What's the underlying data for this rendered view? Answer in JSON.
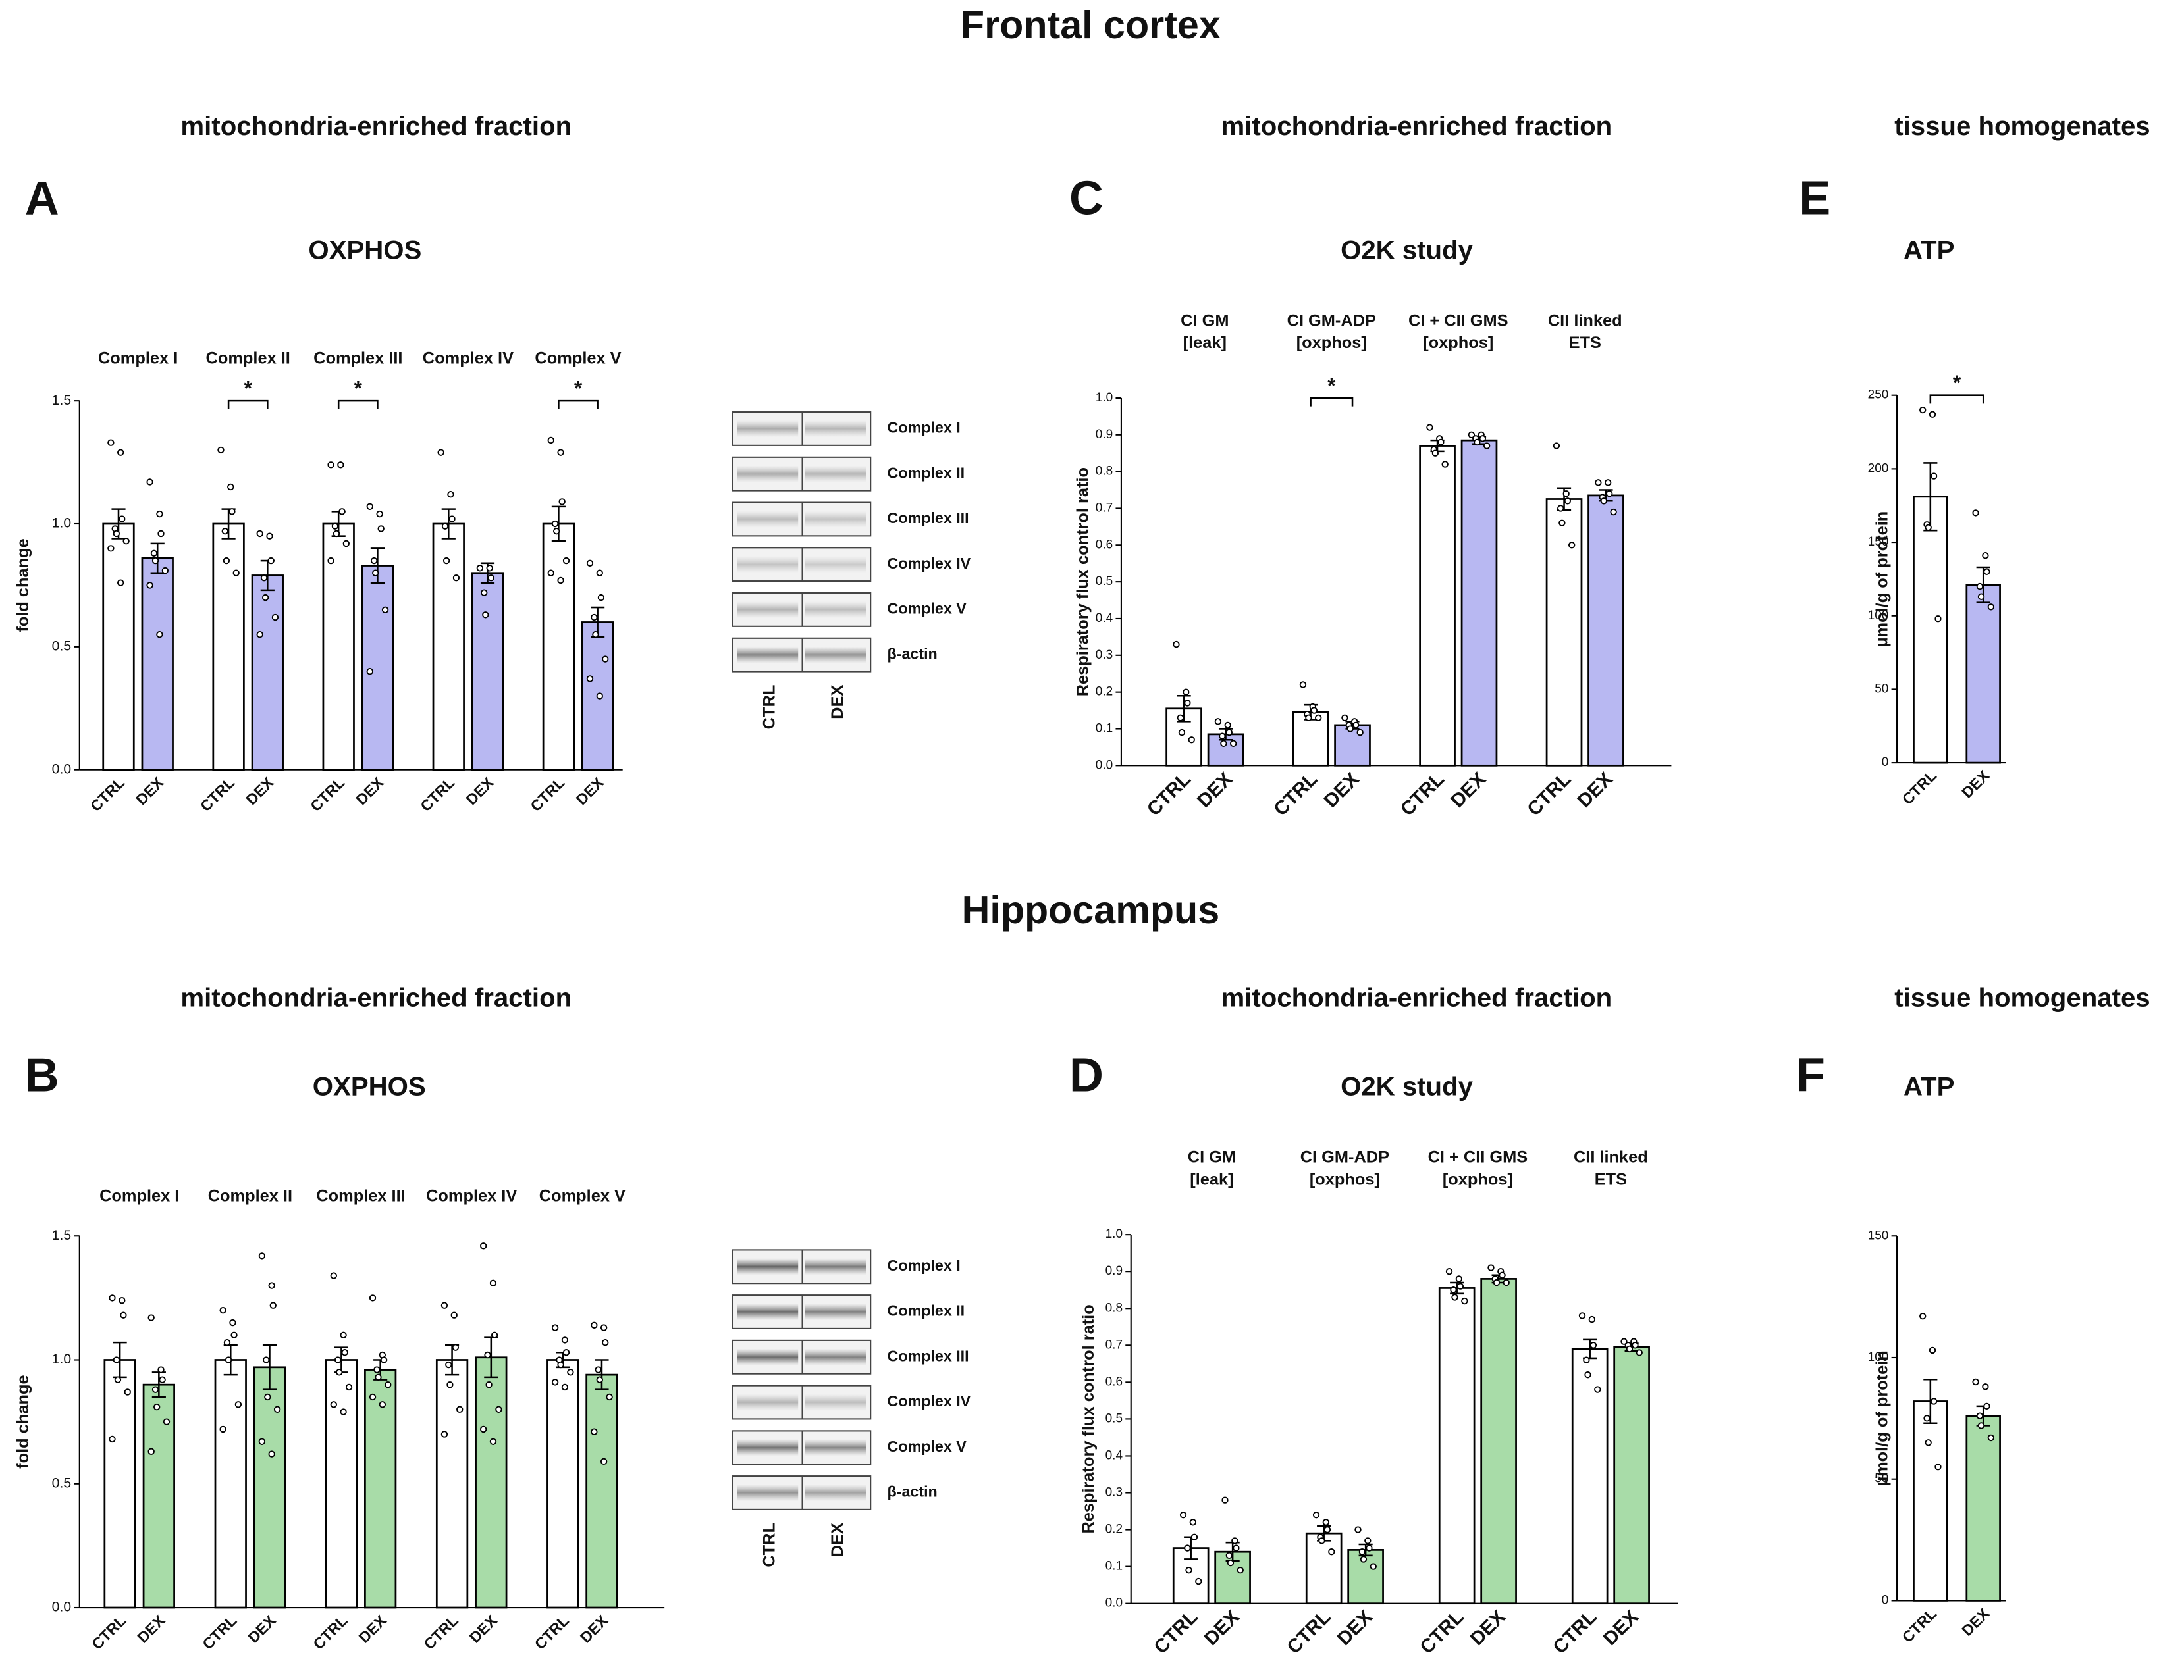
{
  "sections": [
    {
      "title": "Frontal cortex",
      "subtitles": [
        "mitochondria-enriched fraction",
        "mitochondria-enriched fraction",
        "tissue homogenates"
      ]
    },
    {
      "title": "Hippocampus",
      "subtitles": [
        "mitochondria-enriched fraction",
        "mitochondria-enriched fraction",
        "tissue homogenates"
      ]
    }
  ],
  "chart_data": [
    {
      "panel": "A",
      "type": "bar",
      "title": "OXPHOS",
      "ylabel": "fold change",
      "categories": [
        "Complex I",
        "Complex II",
        "Complex III",
        "Complex IV",
        "Complex V"
      ],
      "ylim": [
        0,
        1.5
      ],
      "yticks": [
        {
          "value": 0,
          "label": "0.0"
        },
        {
          "value": 0.5,
          "label": "0.5"
        },
        {
          "value": 1,
          "label": "1.0"
        },
        {
          "value": 1.5,
          "label": "1.5"
        }
      ],
      "significance": [
        null,
        "*",
        "*",
        null,
        "*"
      ],
      "series": [
        {
          "name": "CTRL",
          "color": "#ffffff",
          "values": [
            1.0,
            1.0,
            1.0,
            1.0,
            1.0
          ],
          "errors": [
            0.06,
            0.06,
            0.05,
            0.06,
            0.07
          ],
          "points": [
            [
              1.33,
              1.29,
              1.02,
              0.98,
              0.96,
              0.93,
              0.9,
              0.76
            ],
            [
              1.3,
              1.15,
              1.05,
              0.97,
              0.85,
              0.8
            ],
            [
              1.24,
              1.24,
              1.05,
              0.99,
              0.96,
              0.92,
              0.85
            ],
            [
              1.29,
              1.12,
              1.02,
              0.99,
              0.85,
              0.78
            ],
            [
              1.34,
              1.29,
              1.09,
              1.0,
              0.97,
              0.85,
              0.8,
              0.77
            ]
          ]
        },
        {
          "name": "DEX",
          "color": "#b8b8f2",
          "values": [
            0.86,
            0.79,
            0.83,
            0.8,
            0.6
          ],
          "errors": [
            0.06,
            0.06,
            0.07,
            0.04,
            0.06
          ],
          "points": [
            [
              1.17,
              1.04,
              0.96,
              0.88,
              0.85,
              0.81,
              0.75,
              0.55
            ],
            [
              0.96,
              0.95,
              0.85,
              0.78,
              0.7,
              0.62,
              0.55
            ],
            [
              1.07,
              1.04,
              0.98,
              0.85,
              0.8,
              0.65,
              0.4
            ],
            [
              0.82,
              0.82,
              0.78,
              0.72,
              0.63
            ],
            [
              0.84,
              0.8,
              0.7,
              0.62,
              0.55,
              0.45,
              0.37,
              0.3
            ]
          ]
        }
      ]
    },
    {
      "panel": "B",
      "type": "bar",
      "title": "OXPHOS",
      "ylabel": "fold change",
      "categories": [
        "Complex I",
        "Complex II",
        "Complex III",
        "Complex IV",
        "Complex V"
      ],
      "ylim": [
        0,
        1.5
      ],
      "yticks": [
        {
          "value": 0,
          "label": "0.0"
        },
        {
          "value": 0.5,
          "label": "0.5"
        },
        {
          "value": 1,
          "label": "1.0"
        },
        {
          "value": 1.5,
          "label": "1.5"
        }
      ],
      "series": [
        {
          "name": "CTRL",
          "color": "#ffffff",
          "values": [
            1.0,
            1.0,
            1.0,
            1.0,
            1.0
          ],
          "errors": [
            0.07,
            0.06,
            0.05,
            0.06,
            0.03
          ],
          "points": [
            [
              1.25,
              1.24,
              1.18,
              1.0,
              0.92,
              0.87,
              0.68
            ],
            [
              1.2,
              1.15,
              1.1,
              1.07,
              1.0,
              0.82,
              0.72
            ],
            [
              1.34,
              1.1,
              1.03,
              1.0,
              0.95,
              0.89,
              0.82,
              0.79
            ],
            [
              1.22,
              1.18,
              1.05,
              0.98,
              0.9,
              0.8,
              0.7
            ],
            [
              1.13,
              1.08,
              1.03,
              1.0,
              0.98,
              0.95,
              0.91,
              0.89
            ]
          ]
        },
        {
          "name": "DEX",
          "color": "#a8dca8",
          "values": [
            0.9,
            0.97,
            0.96,
            1.01,
            0.94
          ],
          "errors": [
            0.05,
            0.09,
            0.04,
            0.08,
            0.06
          ],
          "points": [
            [
              1.17,
              0.96,
              0.92,
              0.88,
              0.81,
              0.75,
              0.63
            ],
            [
              1.42,
              1.3,
              1.22,
              1.0,
              0.85,
              0.8,
              0.67,
              0.62
            ],
            [
              1.25,
              1.02,
              1.0,
              0.96,
              0.93,
              0.9,
              0.85,
              0.82
            ],
            [
              1.46,
              1.31,
              1.1,
              1.02,
              0.9,
              0.8,
              0.72,
              0.67
            ],
            [
              1.14,
              1.13,
              1.07,
              0.96,
              0.92,
              0.85,
              0.71,
              0.59
            ]
          ]
        }
      ]
    },
    {
      "panel": "C",
      "type": "bar",
      "title": "O2K study",
      "ylabel": "Respiratory flux control ratio",
      "categories": [
        [
          "CI GM",
          "[leak]"
        ],
        [
          "CI GM-ADP",
          "[oxphos]"
        ],
        [
          "CI + CII GMS",
          "[oxphos]"
        ],
        [
          "CII linked",
          "ETS"
        ]
      ],
      "ylim": [
        0,
        1
      ],
      "yticks": [
        {
          "value": 0,
          "label": "0.0"
        },
        {
          "value": 0.1,
          "label": "0.1"
        },
        {
          "value": 0.2,
          "label": "0.2"
        },
        {
          "value": 0.3,
          "label": "0.3"
        },
        {
          "value": 0.4,
          "label": "0.4"
        },
        {
          "value": 0.5,
          "label": "0.5"
        },
        {
          "value": 0.6,
          "label": "0.6"
        },
        {
          "value": 0.7,
          "label": "0.7"
        },
        {
          "value": 0.8,
          "label": "0.8"
        },
        {
          "value": 0.9,
          "label": "0.9"
        },
        {
          "value": 1,
          "label": "1.0"
        }
      ],
      "significance": [
        null,
        "*",
        null,
        null
      ],
      "series": [
        {
          "name": "CTRL",
          "color": "#ffffff",
          "values": [
            0.155,
            0.145,
            0.87,
            0.725
          ],
          "errors": [
            0.035,
            0.02,
            0.015,
            0.03
          ],
          "points": [
            [
              0.33,
              0.2,
              0.17,
              0.13,
              0.09,
              0.07
            ],
            [
              0.22,
              0.16,
              0.15,
              0.14,
              0.13,
              0.13
            ],
            [
              0.92,
              0.89,
              0.88,
              0.86,
              0.85,
              0.82
            ],
            [
              0.87,
              0.74,
              0.72,
              0.7,
              0.66,
              0.6
            ]
          ]
        },
        {
          "name": "DEX",
          "color": "#b8b8f2",
          "values": [
            0.085,
            0.11,
            0.885,
            0.735
          ],
          "errors": [
            0.015,
            0.01,
            0.01,
            0.015
          ],
          "points": [
            [
              0.12,
              0.11,
              0.09,
              0.08,
              0.06,
              0.06
            ],
            [
              0.13,
              0.12,
              0.11,
              0.11,
              0.1,
              0.09
            ],
            [
              0.9,
              0.9,
              0.89,
              0.89,
              0.88,
              0.87
            ],
            [
              0.77,
              0.77,
              0.74,
              0.73,
              0.72,
              0.69
            ]
          ]
        }
      ]
    },
    {
      "panel": "D",
      "type": "bar",
      "title": "O2K study",
      "ylabel": "Respiratory flux control ratio",
      "categories": [
        [
          "CI GM",
          "[leak]"
        ],
        [
          "CI GM-ADP",
          "[oxphos]"
        ],
        [
          "CI + CII GMS",
          "[oxphos]"
        ],
        [
          "CII linked",
          "ETS"
        ]
      ],
      "ylim": [
        0,
        1
      ],
      "yticks": [
        {
          "value": 0,
          "label": "0.0"
        },
        {
          "value": 0.1,
          "label": "0.1"
        },
        {
          "value": 0.2,
          "label": "0.2"
        },
        {
          "value": 0.3,
          "label": "0.3"
        },
        {
          "value": 0.4,
          "label": "0.4"
        },
        {
          "value": 0.5,
          "label": "0.5"
        },
        {
          "value": 0.6,
          "label": "0.6"
        },
        {
          "value": 0.7,
          "label": "0.7"
        },
        {
          "value": 0.8,
          "label": "0.8"
        },
        {
          "value": 0.9,
          "label": "0.9"
        },
        {
          "value": 1,
          "label": "1.0"
        }
      ],
      "series": [
        {
          "name": "CTRL",
          "color": "#ffffff",
          "values": [
            0.15,
            0.19,
            0.855,
            0.69
          ],
          "errors": [
            0.03,
            0.02,
            0.015,
            0.025
          ],
          "points": [
            [
              0.24,
              0.22,
              0.18,
              0.15,
              0.09,
              0.06
            ],
            [
              0.24,
              0.22,
              0.2,
              0.18,
              0.17,
              0.14
            ],
            [
              0.9,
              0.88,
              0.86,
              0.85,
              0.83,
              0.82
            ],
            [
              0.78,
              0.77,
              0.7,
              0.66,
              0.62,
              0.58
            ]
          ]
        },
        {
          "name": "DEX",
          "color": "#a8dca8",
          "values": [
            0.14,
            0.145,
            0.88,
            0.695
          ],
          "errors": [
            0.025,
            0.015,
            0.01,
            0.01
          ],
          "points": [
            [
              0.28,
              0.17,
              0.15,
              0.13,
              0.11,
              0.09
            ],
            [
              0.2,
              0.17,
              0.15,
              0.14,
              0.12,
              0.1
            ],
            [
              0.91,
              0.9,
              0.89,
              0.88,
              0.87,
              0.87
            ],
            [
              0.71,
              0.71,
              0.7,
              0.7,
              0.69,
              0.68
            ]
          ]
        }
      ]
    },
    {
      "panel": "E",
      "type": "bar",
      "title": "ATP",
      "ylabel": "µmol/g of protein",
      "ylim": [
        0,
        250
      ],
      "yticks": [
        0,
        50,
        100,
        150,
        200,
        250
      ],
      "significance": [
        "*"
      ],
      "series": [
        {
          "name": "CTRL",
          "color": "#ffffff",
          "values": [
            181
          ],
          "errors": [
            23
          ],
          "points": [
            [
              240,
              237,
              195,
              162,
              160,
              98
            ]
          ]
        },
        {
          "name": "DEX",
          "color": "#b8b8f2",
          "values": [
            121
          ],
          "errors": [
            12
          ],
          "points": [
            [
              170,
              141,
              130,
              120,
              113,
              106
            ]
          ]
        }
      ]
    },
    {
      "panel": "F",
      "type": "bar",
      "title": "ATP",
      "ylabel": "µmol/g of protein",
      "ylim": [
        0,
        150
      ],
      "yticks": [
        0,
        50,
        100,
        150
      ],
      "series": [
        {
          "name": "CTRL",
          "color": "#ffffff",
          "values": [
            82
          ],
          "errors": [
            9
          ],
          "points": [
            [
              117,
              103,
              82,
              75,
              65,
              55
            ]
          ]
        },
        {
          "name": "DEX",
          "color": "#a8dca8",
          "values": [
            76
          ],
          "errors": [
            4
          ],
          "points": [
            [
              90,
              88,
              80,
              76,
              72,
              67
            ]
          ]
        }
      ]
    }
  ],
  "blots": [
    {
      "bands": [
        "Complex I",
        "Complex II",
        "Complex III",
        "Complex IV",
        "Complex V",
        "β-actin"
      ],
      "lanes": [
        "CTRL",
        "DEX"
      ]
    },
    {
      "bands": [
        "Complex I",
        "Complex II",
        "Complex III",
        "Complex IV",
        "Complex V",
        "β-actin"
      ],
      "lanes": [
        "CTRL",
        "DEX"
      ]
    }
  ]
}
